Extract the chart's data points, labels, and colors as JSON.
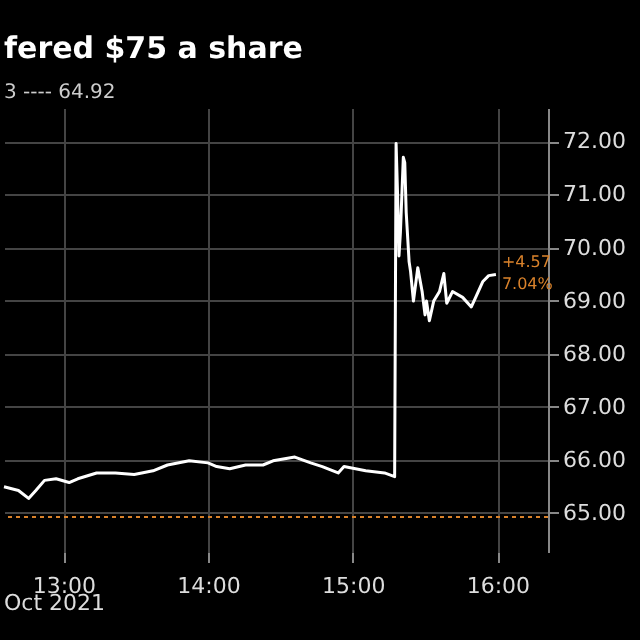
{
  "chart_data": {
    "type": "line",
    "title": "fered $75 a share",
    "annotations": [
      "3 ---- 64.92",
      "Oct 2021",
      {
        "text": "+4.57",
        "x": 15.99,
        "y": 69.49
      },
      {
        "text": "7.04%",
        "x": 15.99,
        "y": 69.49
      }
    ],
    "x": [
      12.59,
      12.69,
      12.76,
      12.81,
      12.87,
      12.95,
      13.04,
      13.1,
      13.23,
      13.36,
      13.49,
      13.62,
      13.72,
      13.87,
      14.0,
      14.06,
      14.15,
      14.26,
      14.38,
      14.45,
      14.6,
      14.71,
      14.79,
      14.9,
      14.94,
      15.09,
      15.22,
      15.29,
      15.3,
      15.31,
      15.32,
      15.33,
      15.35,
      15.36,
      15.37,
      15.39,
      15.4,
      15.42,
      15.45,
      15.48,
      15.5,
      15.51,
      15.53,
      15.56,
      15.6,
      15.63,
      15.65,
      15.69,
      15.76,
      15.82,
      15.85,
      15.9,
      15.94,
      15.99
    ],
    "series": [
      {
        "color": "#ffffff",
        "values": [
          65.49,
          65.42,
          65.27,
          65.42,
          65.61,
          65.64,
          65.57,
          65.64,
          65.75,
          65.75,
          65.72,
          65.79,
          65.9,
          65.98,
          65.94,
          65.87,
          65.83,
          65.9,
          65.9,
          65.98,
          66.05,
          65.94,
          65.87,
          65.75,
          65.87,
          65.79,
          65.75,
          65.68,
          71.96,
          71.03,
          69.84,
          70.29,
          71.7,
          71.6,
          70.66,
          69.73,
          69.55,
          68.99,
          69.62,
          69.17,
          68.73,
          68.99,
          68.62,
          68.99,
          69.17,
          69.51,
          68.95,
          69.17,
          69.06,
          68.88,
          69.06,
          69.36,
          69.47,
          69.49
        ]
      }
    ],
    "xlim": [
      12.59,
      16.35
    ],
    "ylim": [
      64.26,
      72.63
    ],
    "xticks": [
      {
        "value": 13,
        "label": "13:00"
      },
      {
        "value": 14,
        "label": "14:00"
      },
      {
        "value": 15,
        "label": "15:00"
      },
      {
        "value": 16,
        "label": "16:00"
      }
    ],
    "yticks": [
      {
        "value": 65,
        "label": "65.00"
      },
      {
        "value": 66,
        "label": "66.00"
      },
      {
        "value": 67,
        "label": "67.00"
      },
      {
        "value": 68,
        "label": "68.00"
      },
      {
        "value": 69,
        "label": "69.00"
      },
      {
        "value": 70,
        "label": "70.00"
      },
      {
        "value": 71,
        "label": "71.00"
      },
      {
        "value": 72,
        "label": "72.00"
      }
    ],
    "ref_lines": [
      {
        "axis": "y",
        "value": 64.92,
        "color": "#d9822b",
        "line_style": "dotted"
      }
    ],
    "grid": true,
    "line_style": "solid"
  }
}
